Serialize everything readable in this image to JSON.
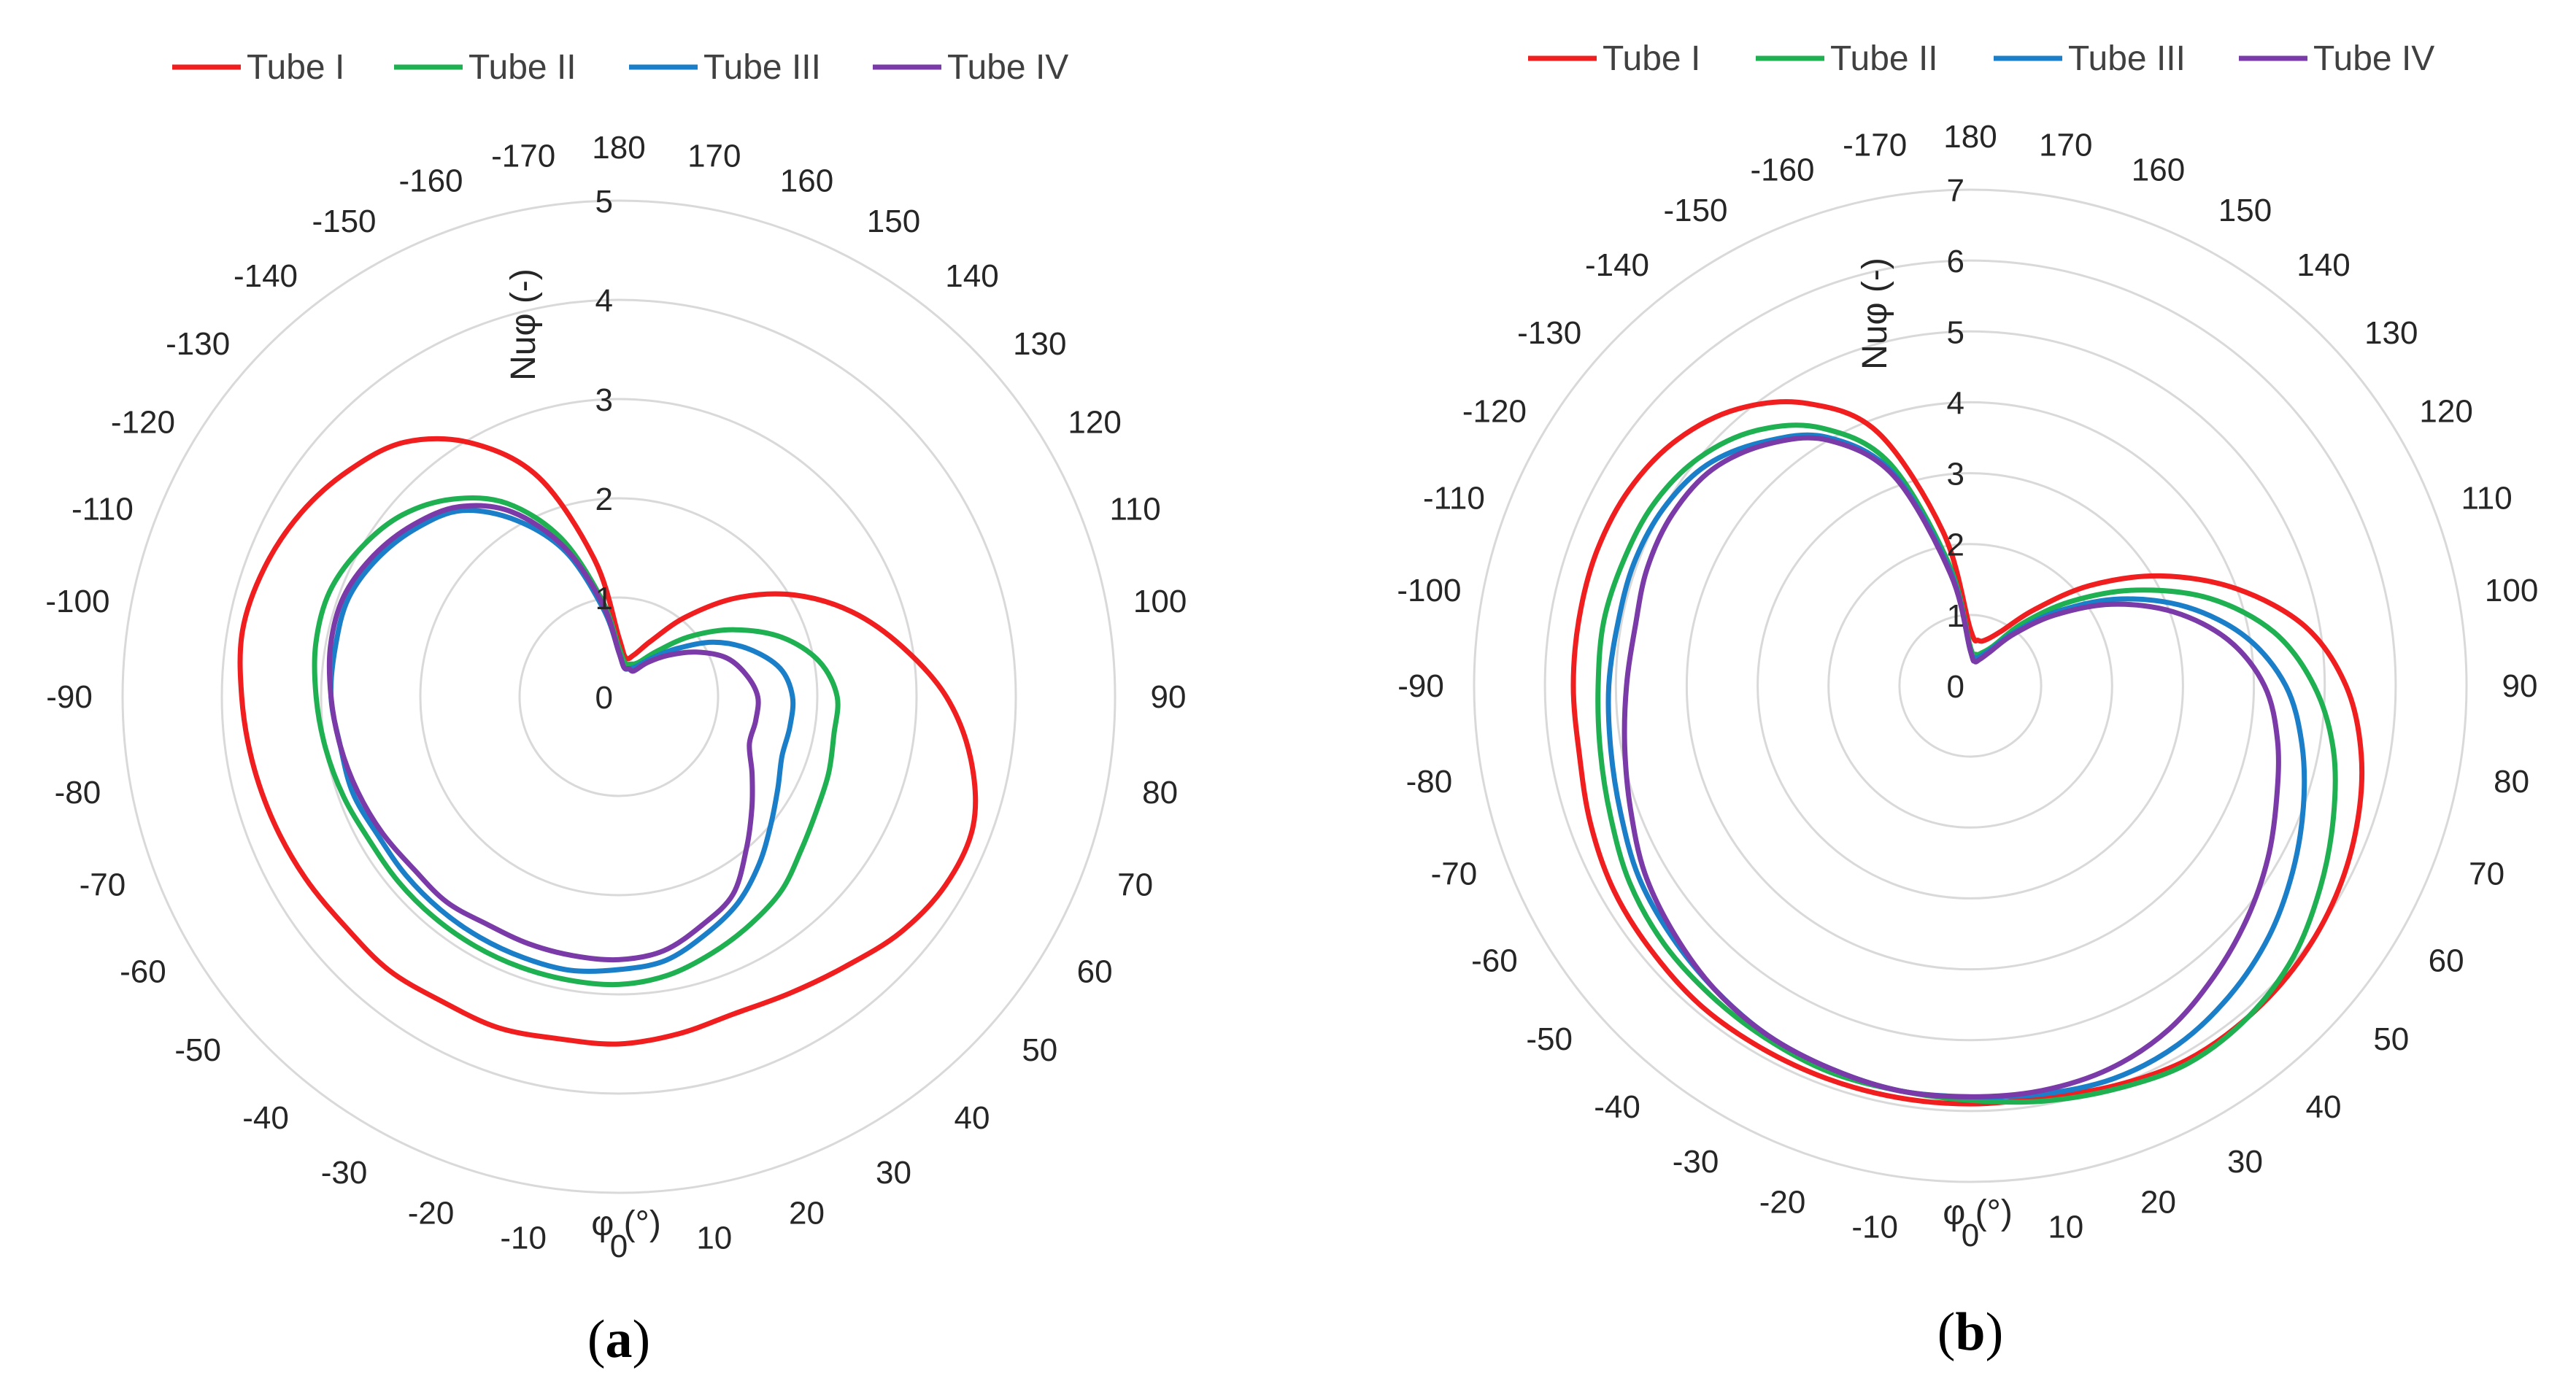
{
  "chart_data": [
    {
      "panel": "a",
      "type": "polar-line",
      "label": "a",
      "legend": [
        "Tube I",
        "Tube II",
        "Tube III",
        "Tube IV"
      ],
      "colors": [
        "#f01e1e",
        "#1fb052",
        "#1a7fc8",
        "#7a3aa8"
      ],
      "radial_axis": {
        "title": "Nuφ (-)",
        "min": 0,
        "max": 5,
        "ticks": [
          "0",
          "1",
          "2",
          "3",
          "4",
          "5"
        ]
      },
      "angular_axis": {
        "title": "φ (°)",
        "ticks": [
          "0",
          "10",
          "20",
          "30",
          "40",
          "50",
          "60",
          "70",
          "80",
          "90",
          "100",
          "110",
          "120",
          "130",
          "140",
          "150",
          "160",
          "170",
          "180",
          "-170",
          "-160",
          "-150",
          "-140",
          "-130",
          "-120",
          "-110",
          "-100",
          "-90",
          "-80",
          "-70",
          "-60",
          "-50",
          "-40",
          "-30",
          "-20",
          "-10"
        ],
        "direction": "counterclockwise",
        "zero_at": "bottom"
      },
      "phi": [
        0,
        10,
        20,
        30,
        40,
        50,
        60,
        70,
        80,
        90,
        100,
        110,
        120,
        130,
        140,
        150,
        160,
        170,
        180,
        -170,
        -160,
        -150,
        -140,
        -130,
        -120,
        -110,
        -100,
        -90,
        -80,
        -70,
        -60,
        -50,
        -40,
        -30,
        -20,
        -10
      ],
      "series": [
        {
          "name": "Tube I",
          "values": [
            3.5,
            3.45,
            3.4,
            3.45,
            3.55,
            3.7,
            3.8,
            3.8,
            3.6,
            3.3,
            2.9,
            2.5,
            2.05,
            1.55,
            1.05,
            0.65,
            0.45,
            0.4,
            0.6,
            1.4,
            2.35,
            2.95,
            3.35,
            3.55,
            3.7,
            3.8,
            3.85,
            3.8,
            3.75,
            3.7,
            3.65,
            3.6,
            3.6,
            3.55,
            3.55,
            3.5
          ]
        },
        {
          "name": "Tube II",
          "values": [
            2.9,
            2.85,
            2.75,
            2.65,
            2.55,
            2.4,
            2.3,
            2.25,
            2.2,
            2.2,
            2.05,
            1.75,
            1.35,
            0.95,
            0.6,
            0.4,
            0.35,
            0.35,
            0.5,
            1.0,
            1.7,
            2.25,
            2.6,
            2.85,
            3.0,
            3.1,
            3.1,
            3.05,
            3.0,
            2.95,
            2.9,
            2.9,
            2.9,
            2.9,
            2.9,
            2.9
          ]
        },
        {
          "name": "Tube III",
          "values": [
            2.75,
            2.7,
            2.55,
            2.4,
            2.2,
            2.0,
            1.85,
            1.75,
            1.75,
            1.75,
            1.65,
            1.4,
            1.1,
            0.75,
            0.5,
            0.35,
            0.3,
            0.3,
            0.45,
            0.9,
            1.55,
            2.05,
            2.45,
            2.65,
            2.8,
            2.9,
            2.9,
            2.9,
            2.85,
            2.85,
            2.8,
            2.8,
            2.8,
            2.8,
            2.8,
            2.8
          ]
        },
        {
          "name": "Tube IV",
          "values": [
            2.65,
            2.6,
            2.45,
            2.3,
            2.0,
            1.75,
            1.55,
            1.4,
            1.4,
            1.4,
            1.3,
            1.15,
            0.9,
            0.65,
            0.45,
            0.3,
            0.3,
            0.3,
            0.45,
            0.95,
            1.6,
            2.15,
            2.5,
            2.7,
            2.85,
            2.95,
            2.95,
            2.9,
            2.85,
            2.8,
            2.75,
            2.7,
            2.7,
            2.65,
            2.65,
            2.65
          ]
        }
      ]
    },
    {
      "panel": "b",
      "type": "polar-line",
      "label": "b",
      "legend": [
        "Tube I",
        "Tube II",
        "Tube III",
        "Tube IV"
      ],
      "colors": [
        "#f01e1e",
        "#1fb052",
        "#1a7fc8",
        "#7a3aa8"
      ],
      "radial_axis": {
        "title": "Nuφ (-)",
        "min": 0,
        "max": 7,
        "ticks": [
          "0",
          "1",
          "2",
          "3",
          "4",
          "5",
          "6",
          "7"
        ]
      },
      "angular_axis": {
        "title": "φ (°)",
        "ticks": [
          "0",
          "10",
          "20",
          "30",
          "40",
          "50",
          "60",
          "70",
          "80",
          "90",
          "100",
          "110",
          "120",
          "130",
          "140",
          "150",
          "160",
          "170",
          "180",
          "-170",
          "-160",
          "-150",
          "-140",
          "-130",
          "-120",
          "-110",
          "-100",
          "-90",
          "-80",
          "-70",
          "-60",
          "-50",
          "-40",
          "-30",
          "-20",
          "-10"
        ],
        "direction": "counterclockwise",
        "zero_at": "bottom"
      },
      "phi": [
        0,
        10,
        20,
        30,
        40,
        50,
        60,
        70,
        80,
        90,
        100,
        110,
        120,
        130,
        140,
        150,
        160,
        170,
        180,
        -170,
        -160,
        -150,
        -140,
        -130,
        -120,
        -110,
        -100,
        -90,
        -80,
        -70,
        -60,
        -50,
        -40,
        -30,
        -20,
        -10
      ],
      "series": [
        {
          "name": "Tube I",
          "values": [
            5.9,
            5.9,
            6.0,
            6.1,
            6.1,
            6.05,
            5.95,
            5.8,
            5.6,
            5.3,
            4.8,
            4.0,
            3.1,
            2.2,
            1.4,
            0.9,
            0.7,
            0.65,
            0.8,
            2.2,
            3.8,
            4.6,
            5.1,
            5.4,
            5.55,
            5.6,
            5.6,
            5.6,
            5.6,
            5.7,
            5.8,
            5.85,
            5.9,
            5.9,
            5.9,
            5.9
          ]
        },
        {
          "name": "Tube II",
          "values": [
            5.85,
            5.95,
            6.05,
            6.15,
            6.1,
            5.95,
            5.7,
            5.45,
            5.2,
            4.85,
            4.35,
            3.6,
            2.7,
            1.85,
            1.15,
            0.65,
            0.5,
            0.45,
            0.55,
            1.75,
            3.35,
            4.2,
            4.7,
            5.0,
            5.15,
            5.2,
            5.25,
            5.25,
            5.3,
            5.4,
            5.55,
            5.65,
            5.7,
            5.75,
            5.8,
            5.8
          ]
        },
        {
          "name": "Tube III",
          "values": [
            5.8,
            5.85,
            5.9,
            5.85,
            5.7,
            5.5,
            5.25,
            5.0,
            4.75,
            4.45,
            3.95,
            3.25,
            2.45,
            1.65,
            1.0,
            0.6,
            0.45,
            0.4,
            0.5,
            1.65,
            3.2,
            4.05,
            4.5,
            4.85,
            5.0,
            5.05,
            5.05,
            5.1,
            5.15,
            5.25,
            5.4,
            5.5,
            5.6,
            5.7,
            5.75,
            5.8
          ]
        },
        {
          "name": "Tube IV",
          "values": [
            5.8,
            5.8,
            5.75,
            5.6,
            5.35,
            5.1,
            4.85,
            4.6,
            4.4,
            4.15,
            3.7,
            3.05,
            2.3,
            1.55,
            0.95,
            0.55,
            0.4,
            0.35,
            0.5,
            1.6,
            3.15,
            4.0,
            4.45,
            4.75,
            4.85,
            4.85,
            4.8,
            4.85,
            4.95,
            5.1,
            5.3,
            5.45,
            5.6,
            5.7,
            5.75,
            5.8
          ]
        }
      ]
    }
  ]
}
